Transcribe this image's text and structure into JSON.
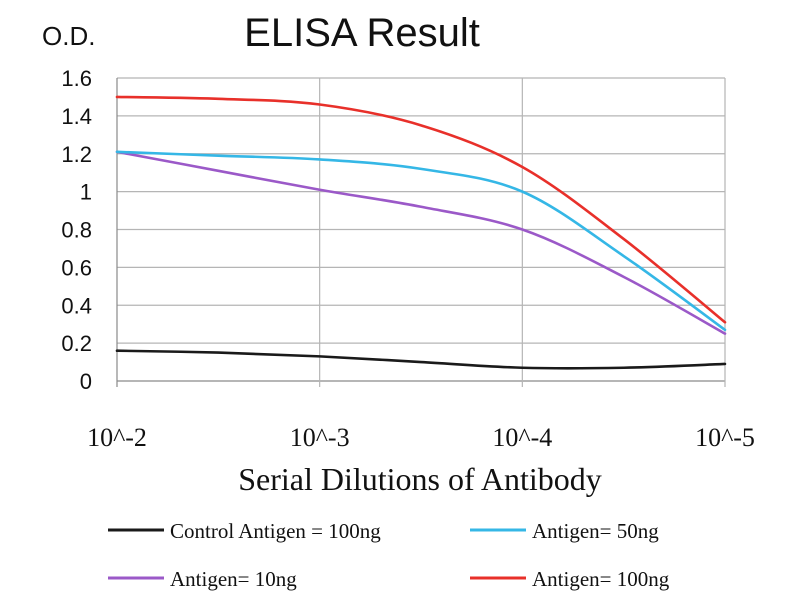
{
  "chart_data": {
    "type": "line",
    "title": "ELISA Result",
    "ylabel": "O.D.",
    "xlabel": "Serial Dilutions of Antibody",
    "categories": [
      "10^-2",
      "10^-3",
      "10^-4",
      "10^-5"
    ],
    "x": [
      0,
      0.5,
      1,
      1.5,
      2,
      2.5,
      3
    ],
    "ylim": [
      0,
      1.6
    ],
    "yticks": [
      "0",
      "0.2",
      "0.4",
      "0.6",
      "0.8",
      "1",
      "1.2",
      "1.4",
      "1.6"
    ],
    "grid": true,
    "series": [
      {
        "name": "Control Antigen = 100ng",
        "color": "#1a1a1a",
        "values": [
          0.16,
          0.15,
          0.13,
          0.1,
          0.07,
          0.07,
          0.09
        ]
      },
      {
        "name": "Antigen= 10ng",
        "color": "#9b59c8",
        "values": [
          1.21,
          1.11,
          1.01,
          0.92,
          0.8,
          0.55,
          0.25
        ]
      },
      {
        "name": "Antigen= 50ng",
        "color": "#35b7e6",
        "values": [
          1.21,
          1.19,
          1.17,
          1.12,
          1.0,
          0.66,
          0.27
        ]
      },
      {
        "name": "Antigen= 100ng",
        "color": "#e8302a",
        "values": [
          1.5,
          1.49,
          1.46,
          1.35,
          1.13,
          0.75,
          0.31
        ]
      }
    ],
    "legend_order": [
      0,
      2,
      1,
      3
    ]
  }
}
